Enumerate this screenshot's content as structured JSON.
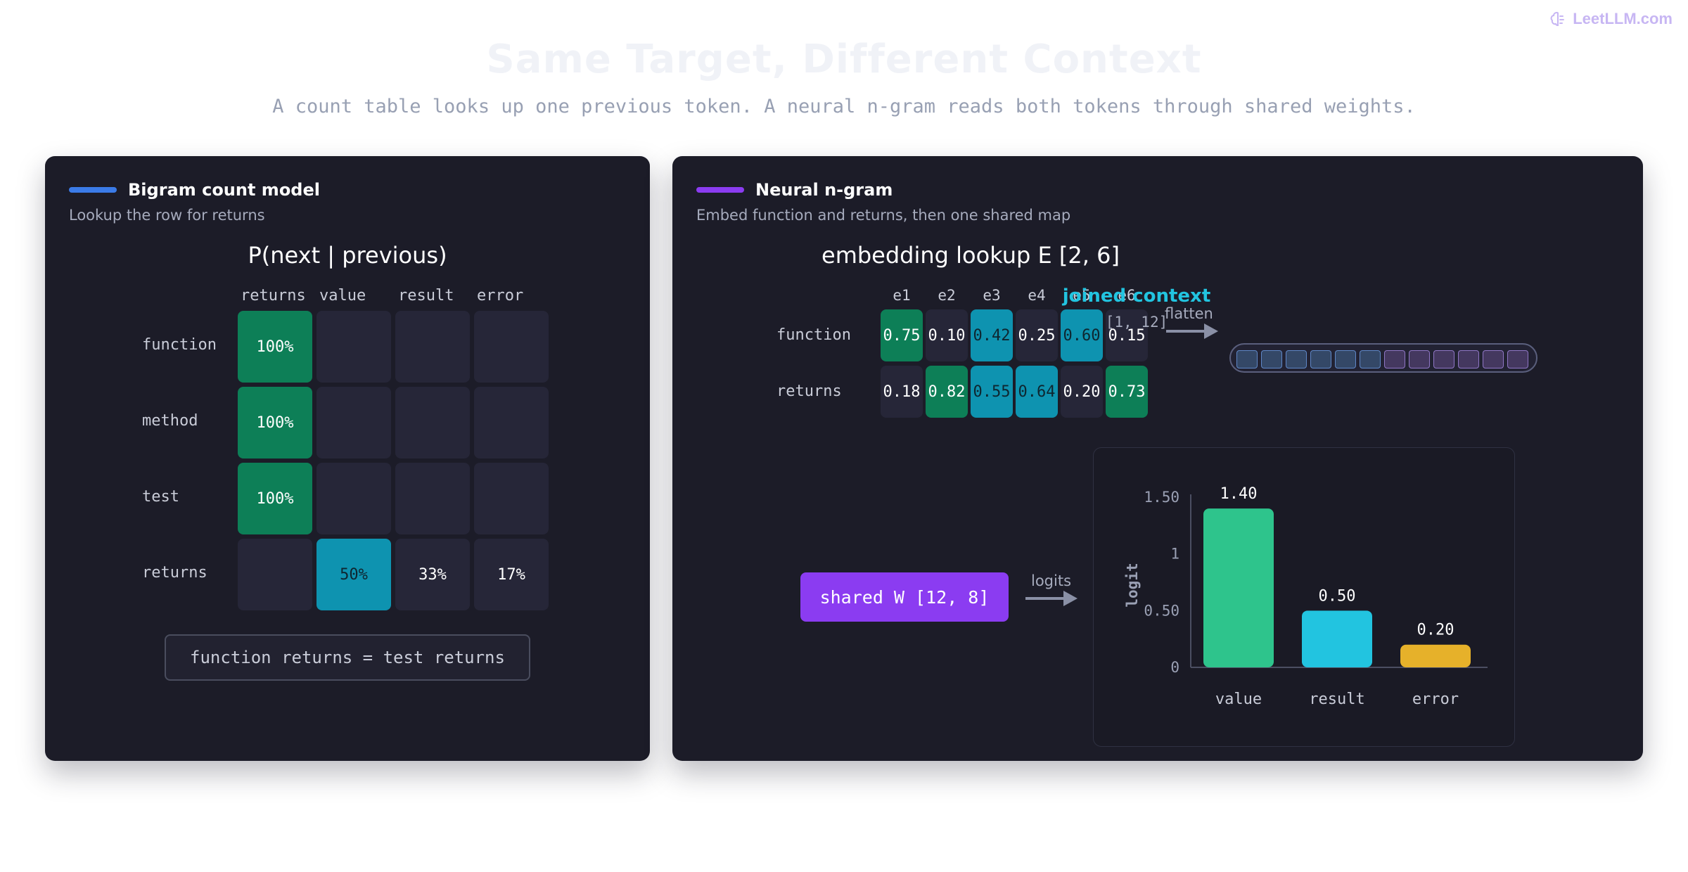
{
  "brand": {
    "name": "LeetLLM.com",
    "icon": "brain-icon"
  },
  "header": {
    "title": "Same Target, Different Context",
    "subtitle": "A count table looks up one previous token. A neural n-gram reads both tokens through shared weights."
  },
  "colors": {
    "left_accent": "#3b7be8",
    "right_accent": "#8b3cf1",
    "green": "#0d7f57",
    "teal": "#0e93b0",
    "joined": "#22c4e0",
    "bar_value": "#2ec48c",
    "bar_result": "#22c4e0",
    "bar_error": "#e6b12a"
  },
  "left": {
    "name": "Bigram count model",
    "desc": "Lookup the row for returns",
    "table_title": "P(next | previous)",
    "columns": [
      "returns",
      "value",
      "result",
      "error"
    ],
    "rows": [
      {
        "label": "function",
        "cells": [
          "100%",
          "",
          "",
          ""
        ]
      },
      {
        "label": "method",
        "cells": [
          "100%",
          "",
          "",
          ""
        ]
      },
      {
        "label": "test",
        "cells": [
          "100%",
          "",
          "",
          ""
        ]
      },
      {
        "label": "returns",
        "cells": [
          "",
          "50%",
          "33%",
          "17%"
        ]
      }
    ],
    "note": "function returns = test returns"
  },
  "right": {
    "name": "Neural n-gram",
    "desc": "Embed function and returns, then one shared map",
    "embedding_title": "embedding lookup E [2, 6]",
    "embed_columns": [
      "e1",
      "e2",
      "e3",
      "e4",
      "e5",
      "e6"
    ],
    "embed_rows": [
      {
        "label": "function",
        "values": [
          "0.75",
          "0.10",
          "0.42",
          "0.25",
          "0.60",
          "0.15"
        ]
      },
      {
        "label": "returns",
        "values": [
          "0.18",
          "0.82",
          "0.55",
          "0.64",
          "0.20",
          "0.73"
        ]
      }
    ],
    "flatten_label": "flatten",
    "joined_title": "joined context",
    "joined_shape": "[1, 12]",
    "shared_weights": "shared W [12, 8]",
    "logits_label": "logits"
  },
  "chart_data": {
    "type": "bar",
    "categories": [
      "value",
      "result",
      "error"
    ],
    "values": [
      1.4,
      0.5,
      0.2
    ],
    "value_labels": [
      "1.40",
      "0.50",
      "0.20"
    ],
    "ylabel": "logit",
    "ylim": [
      0,
      1.5
    ],
    "yticks": [
      0,
      0.5,
      1,
      1.5
    ],
    "ytick_labels": [
      "0",
      "0.50",
      "1",
      "1.50"
    ],
    "grid": false
  }
}
